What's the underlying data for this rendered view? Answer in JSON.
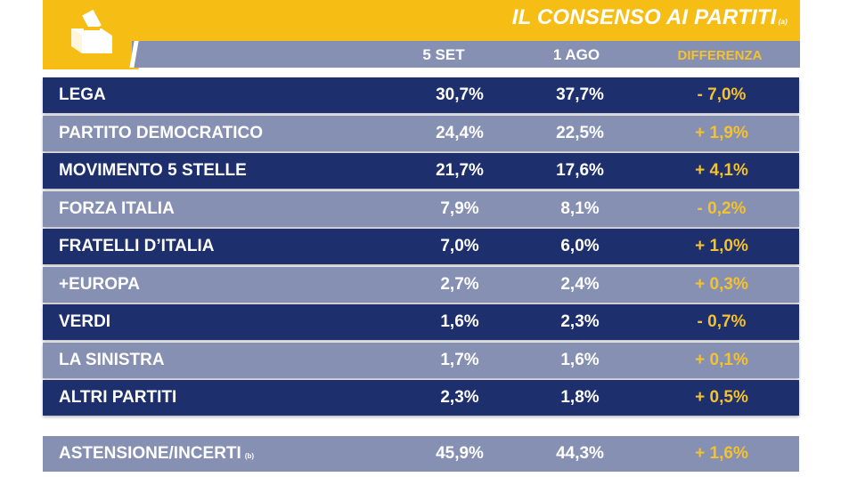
{
  "title": {
    "text": "IL CONSENSO AI PARTITI",
    "note": "(a)"
  },
  "header": {
    "col1": "5 SET",
    "col2": "1 AGO",
    "col3": "DIFFERENZA"
  },
  "colors": {
    "accent": "#f6bd14",
    "dark_row": "#1d2f6c",
    "light_row": "#8590b3",
    "diff_text": "#f6c22b"
  },
  "icon": "ballot-box-icon",
  "chart_data": {
    "type": "table",
    "columns": [
      "5 SET",
      "1 AGO",
      "DIFFERENZA"
    ],
    "rows": [
      {
        "party": "LEGA",
        "v1": "30,7%",
        "v2": "37,7%",
        "diff": "- 7,0%"
      },
      {
        "party": "PARTITO DEMOCRATICO",
        "v1": "24,4%",
        "v2": "22,5%",
        "diff": "+ 1,9%"
      },
      {
        "party": "MOVIMENTO 5 STELLE",
        "v1": "21,7%",
        "v2": "17,6%",
        "diff": "+ 4,1%"
      },
      {
        "party": "FORZA ITALIA",
        "v1": "7,9%",
        "v2": "8,1%",
        "diff": "- 0,2%"
      },
      {
        "party": "FRATELLI D’ITALIA",
        "v1": "7,0%",
        "v2": "6,0%",
        "diff": "+ 1,0%"
      },
      {
        "party": "+EUROPA",
        "v1": "2,7%",
        "v2": "2,4%",
        "diff": "+ 0,3%"
      },
      {
        "party": "VERDI",
        "v1": "1,6%",
        "v2": "2,3%",
        "diff": "- 0,7%"
      },
      {
        "party": "LA SINISTRA",
        "v1": "1,7%",
        "v2": "1,6%",
        "diff": "+ 0,1%"
      },
      {
        "party": "ALTRI PARTITI",
        "v1": "2,3%",
        "v2": "1,8%",
        "diff": "+ 0,5%"
      }
    ],
    "summary": {
      "party": "ASTENSIONE/INCERTI",
      "note": "(b)",
      "v1": "45,9%",
      "v2": "44,3%",
      "diff": "+ 1,6%"
    }
  }
}
